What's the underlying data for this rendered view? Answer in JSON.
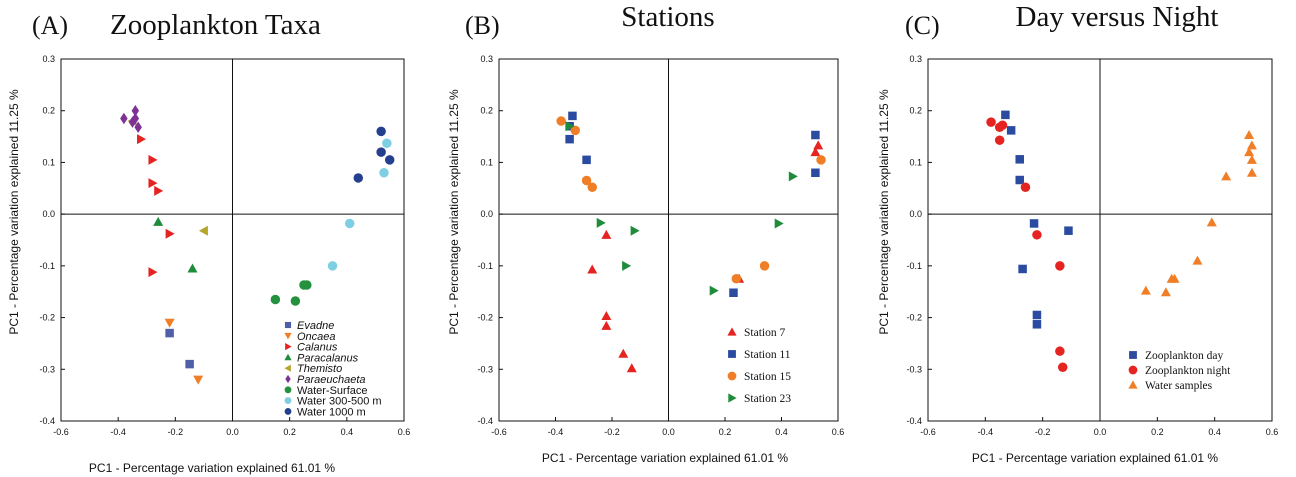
{
  "colors": {
    "red": "#e52421",
    "blue": "#2b4ba0",
    "orange": "#f07e26",
    "green": "#1e8c3a",
    "olive": "#b5a62a",
    "purple": "#7e3394",
    "lightblue": "#7fcfe3",
    "navy": "#253f8f",
    "darkgreen": "#24913f",
    "axis": "#111111"
  },
  "chart_data": [
    {
      "type": "scatter",
      "panel_label": "(A)",
      "title": "Zooplankton Taxa",
      "xlabel": "PC1 - Percentage variation explained 61.01 %",
      "ylabel": "PC1 - Percentage variation explained 11.25 %",
      "xlim": [
        -0.6,
        0.6
      ],
      "ylim": [
        -0.4,
        0.3
      ],
      "xticks": [
        "-0.6",
        "-0.4",
        "-0.2",
        "0.0",
        "0.2",
        "0.4",
        "0.6"
      ],
      "yticks": [
        "0.3",
        "0.2",
        "0.1",
        "0.0",
        "-0.1",
        "-0.2",
        "-0.3",
        "-0.4"
      ],
      "grid": false,
      "legend_position": "bottom-right",
      "series": [
        {
          "name": "Evadne",
          "italic": true,
          "marker": "square",
          "color": "#4f5fa8",
          "points": [
            [
              -0.22,
              -0.23
            ],
            [
              -0.15,
              -0.29
            ]
          ]
        },
        {
          "name": "Oncaea",
          "italic": true,
          "marker": "triangle-down",
          "color": "#f07e26",
          "points": [
            [
              -0.22,
              -0.21
            ],
            [
              -0.12,
              -0.32
            ]
          ]
        },
        {
          "name": "Calanus",
          "italic": true,
          "marker": "triangle-right",
          "color": "#e52421",
          "points": [
            [
              -0.32,
              0.145
            ],
            [
              -0.28,
              0.105
            ],
            [
              -0.28,
              0.06
            ],
            [
              -0.26,
              0.045
            ],
            [
              -0.22,
              -0.038
            ],
            [
              -0.28,
              -0.112
            ]
          ]
        },
        {
          "name": "Paracalanus",
          "italic": true,
          "marker": "triangle-up",
          "color": "#1e8c3a",
          "points": [
            [
              -0.26,
              -0.015
            ],
            [
              -0.14,
              -0.105
            ]
          ]
        },
        {
          "name": "Themisto",
          "italic": true,
          "marker": "triangle-left",
          "color": "#b5a62a",
          "points": [
            [
              -0.35,
              0.18
            ],
            [
              -0.1,
              -0.032
            ]
          ]
        },
        {
          "name": "Paraeuchaeta",
          "italic": true,
          "marker": "diamond",
          "color": "#7e3394",
          "points": [
            [
              -0.38,
              0.185
            ],
            [
              -0.34,
              0.2
            ],
            [
              -0.33,
              0.168
            ],
            [
              -0.34,
              0.185
            ],
            [
              -0.35,
              0.178
            ]
          ]
        },
        {
          "name": "Water-Surface",
          "italic": false,
          "marker": "circle",
          "color": "#24913f",
          "points": [
            [
              0.15,
              -0.165
            ],
            [
              0.22,
              -0.168
            ],
            [
              0.25,
              -0.137
            ],
            [
              0.26,
              -0.137
            ]
          ]
        },
        {
          "name": "Water 300-500 m",
          "italic": false,
          "marker": "circle",
          "color": "#7fcfe3",
          "points": [
            [
              0.35,
              -0.1
            ],
            [
              0.41,
              -0.018
            ],
            [
              0.53,
              0.08
            ],
            [
              0.54,
              0.137
            ]
          ]
        },
        {
          "name": "Water 1000 m",
          "italic": false,
          "marker": "circle",
          "color": "#253f8f",
          "points": [
            [
              0.44,
              0.07
            ],
            [
              0.52,
              0.12
            ],
            [
              0.52,
              0.16
            ],
            [
              0.55,
              0.105
            ]
          ]
        }
      ]
    },
    {
      "type": "scatter",
      "panel_label": "(B)",
      "title": "Stations",
      "xlabel": "PC1 - Percentage variation explained 61.01 %",
      "ylabel": "PC1 - Percentage variation explained 11.25 %",
      "xlim": [
        -0.6,
        0.6
      ],
      "ylim": [
        -0.4,
        0.3
      ],
      "xticks": [
        "-0.6",
        "-0.4",
        "-0.2",
        "0.0",
        "0.2",
        "0.4",
        "0.6"
      ],
      "yticks": [
        "0.3",
        "0.2",
        "0.1",
        "0.0",
        "-0.1",
        "-0.2",
        "-0.3",
        "-0.4"
      ],
      "grid": false,
      "legend_position": "bottom-right",
      "series": [
        {
          "name": "Station 7",
          "marker": "triangle-up",
          "color": "#e52421",
          "points": [
            [
              -0.22,
              -0.04
            ],
            [
              -0.27,
              -0.107
            ],
            [
              -0.22,
              -0.197
            ],
            [
              -0.22,
              -0.216
            ],
            [
              -0.16,
              -0.27
            ],
            [
              -0.13,
              -0.298
            ],
            [
              0.25,
              -0.125
            ],
            [
              0.52,
              0.12
            ],
            [
              0.53,
              0.133
            ]
          ]
        },
        {
          "name": "Station 11",
          "marker": "square",
          "color": "#2b4ba0",
          "points": [
            [
              -0.34,
              0.19
            ],
            [
              -0.35,
              0.17
            ],
            [
              -0.35,
              0.145
            ],
            [
              -0.29,
              0.105
            ],
            [
              0.23,
              -0.152
            ],
            [
              0.52,
              0.153
            ],
            [
              0.52,
              0.08
            ]
          ]
        },
        {
          "name": "Station 15",
          "marker": "circle",
          "color": "#f07e26",
          "points": [
            [
              -0.38,
              0.18
            ],
            [
              -0.33,
              0.162
            ],
            [
              -0.29,
              0.065
            ],
            [
              -0.27,
              0.052
            ],
            [
              0.24,
              -0.125
            ],
            [
              0.34,
              -0.1
            ],
            [
              0.54,
              0.105
            ]
          ]
        },
        {
          "name": "Station 23",
          "marker": "triangle-right",
          "color": "#1e8c3a",
          "points": [
            [
              -0.35,
              0.17
            ],
            [
              -0.24,
              -0.017
            ],
            [
              -0.12,
              -0.032
            ],
            [
              -0.15,
              -0.1
            ],
            [
              0.16,
              -0.148
            ],
            [
              0.39,
              -0.018
            ],
            [
              0.44,
              0.073
            ]
          ]
        }
      ]
    },
    {
      "type": "scatter",
      "panel_label": "(C)",
      "title": "Day versus Night",
      "xlabel": "PC1 - Percentage variation explained 61.01 %",
      "ylabel": "PC1 - Percentage variation explained 11.25 %",
      "xlim": [
        -0.6,
        0.6
      ],
      "ylim": [
        -0.4,
        0.3
      ],
      "xticks": [
        "-0.6",
        "-0.4",
        "-0.2",
        "0.0",
        "0.2",
        "0.4",
        "0.6"
      ],
      "yticks": [
        "0.3",
        "0.2",
        "0.1",
        "0.0",
        "-0.1",
        "-0.2",
        "-0.3",
        "-0.4"
      ],
      "grid": false,
      "legend_position": "bottom-right",
      "series": [
        {
          "name": "Zooplankton day",
          "marker": "square",
          "color": "#2b4ba0",
          "points": [
            [
              -0.33,
              0.192
            ],
            [
              -0.31,
              0.162
            ],
            [
              -0.28,
              0.106
            ],
            [
              -0.28,
              0.066
            ],
            [
              -0.23,
              -0.018
            ],
            [
              -0.27,
              -0.106
            ],
            [
              -0.11,
              -0.032
            ],
            [
              -0.22,
              -0.195
            ],
            [
              -0.22,
              -0.213
            ]
          ]
        },
        {
          "name": "Zooplankton night",
          "marker": "circle",
          "color": "#e52421",
          "points": [
            [
              -0.38,
              0.178
            ],
            [
              -0.35,
              0.168
            ],
            [
              -0.34,
              0.172
            ],
            [
              -0.35,
              0.143
            ],
            [
              -0.26,
              0.052
            ],
            [
              -0.22,
              -0.04
            ],
            [
              -0.14,
              -0.1
            ],
            [
              -0.14,
              -0.265
            ],
            [
              -0.13,
              -0.296
            ]
          ]
        },
        {
          "name": "Water samples",
          "marker": "triangle-up",
          "color": "#f07e26",
          "points": [
            [
              0.16,
              -0.148
            ],
            [
              0.23,
              -0.151
            ],
            [
              0.25,
              -0.125
            ],
            [
              0.26,
              -0.125
            ],
            [
              0.34,
              -0.09
            ],
            [
              0.39,
              -0.016
            ],
            [
              0.44,
              0.073
            ],
            [
              0.52,
              0.153
            ],
            [
              0.52,
              0.12
            ],
            [
              0.53,
              0.105
            ],
            [
              0.53,
              0.133
            ],
            [
              0.53,
              0.08
            ]
          ]
        }
      ]
    }
  ]
}
